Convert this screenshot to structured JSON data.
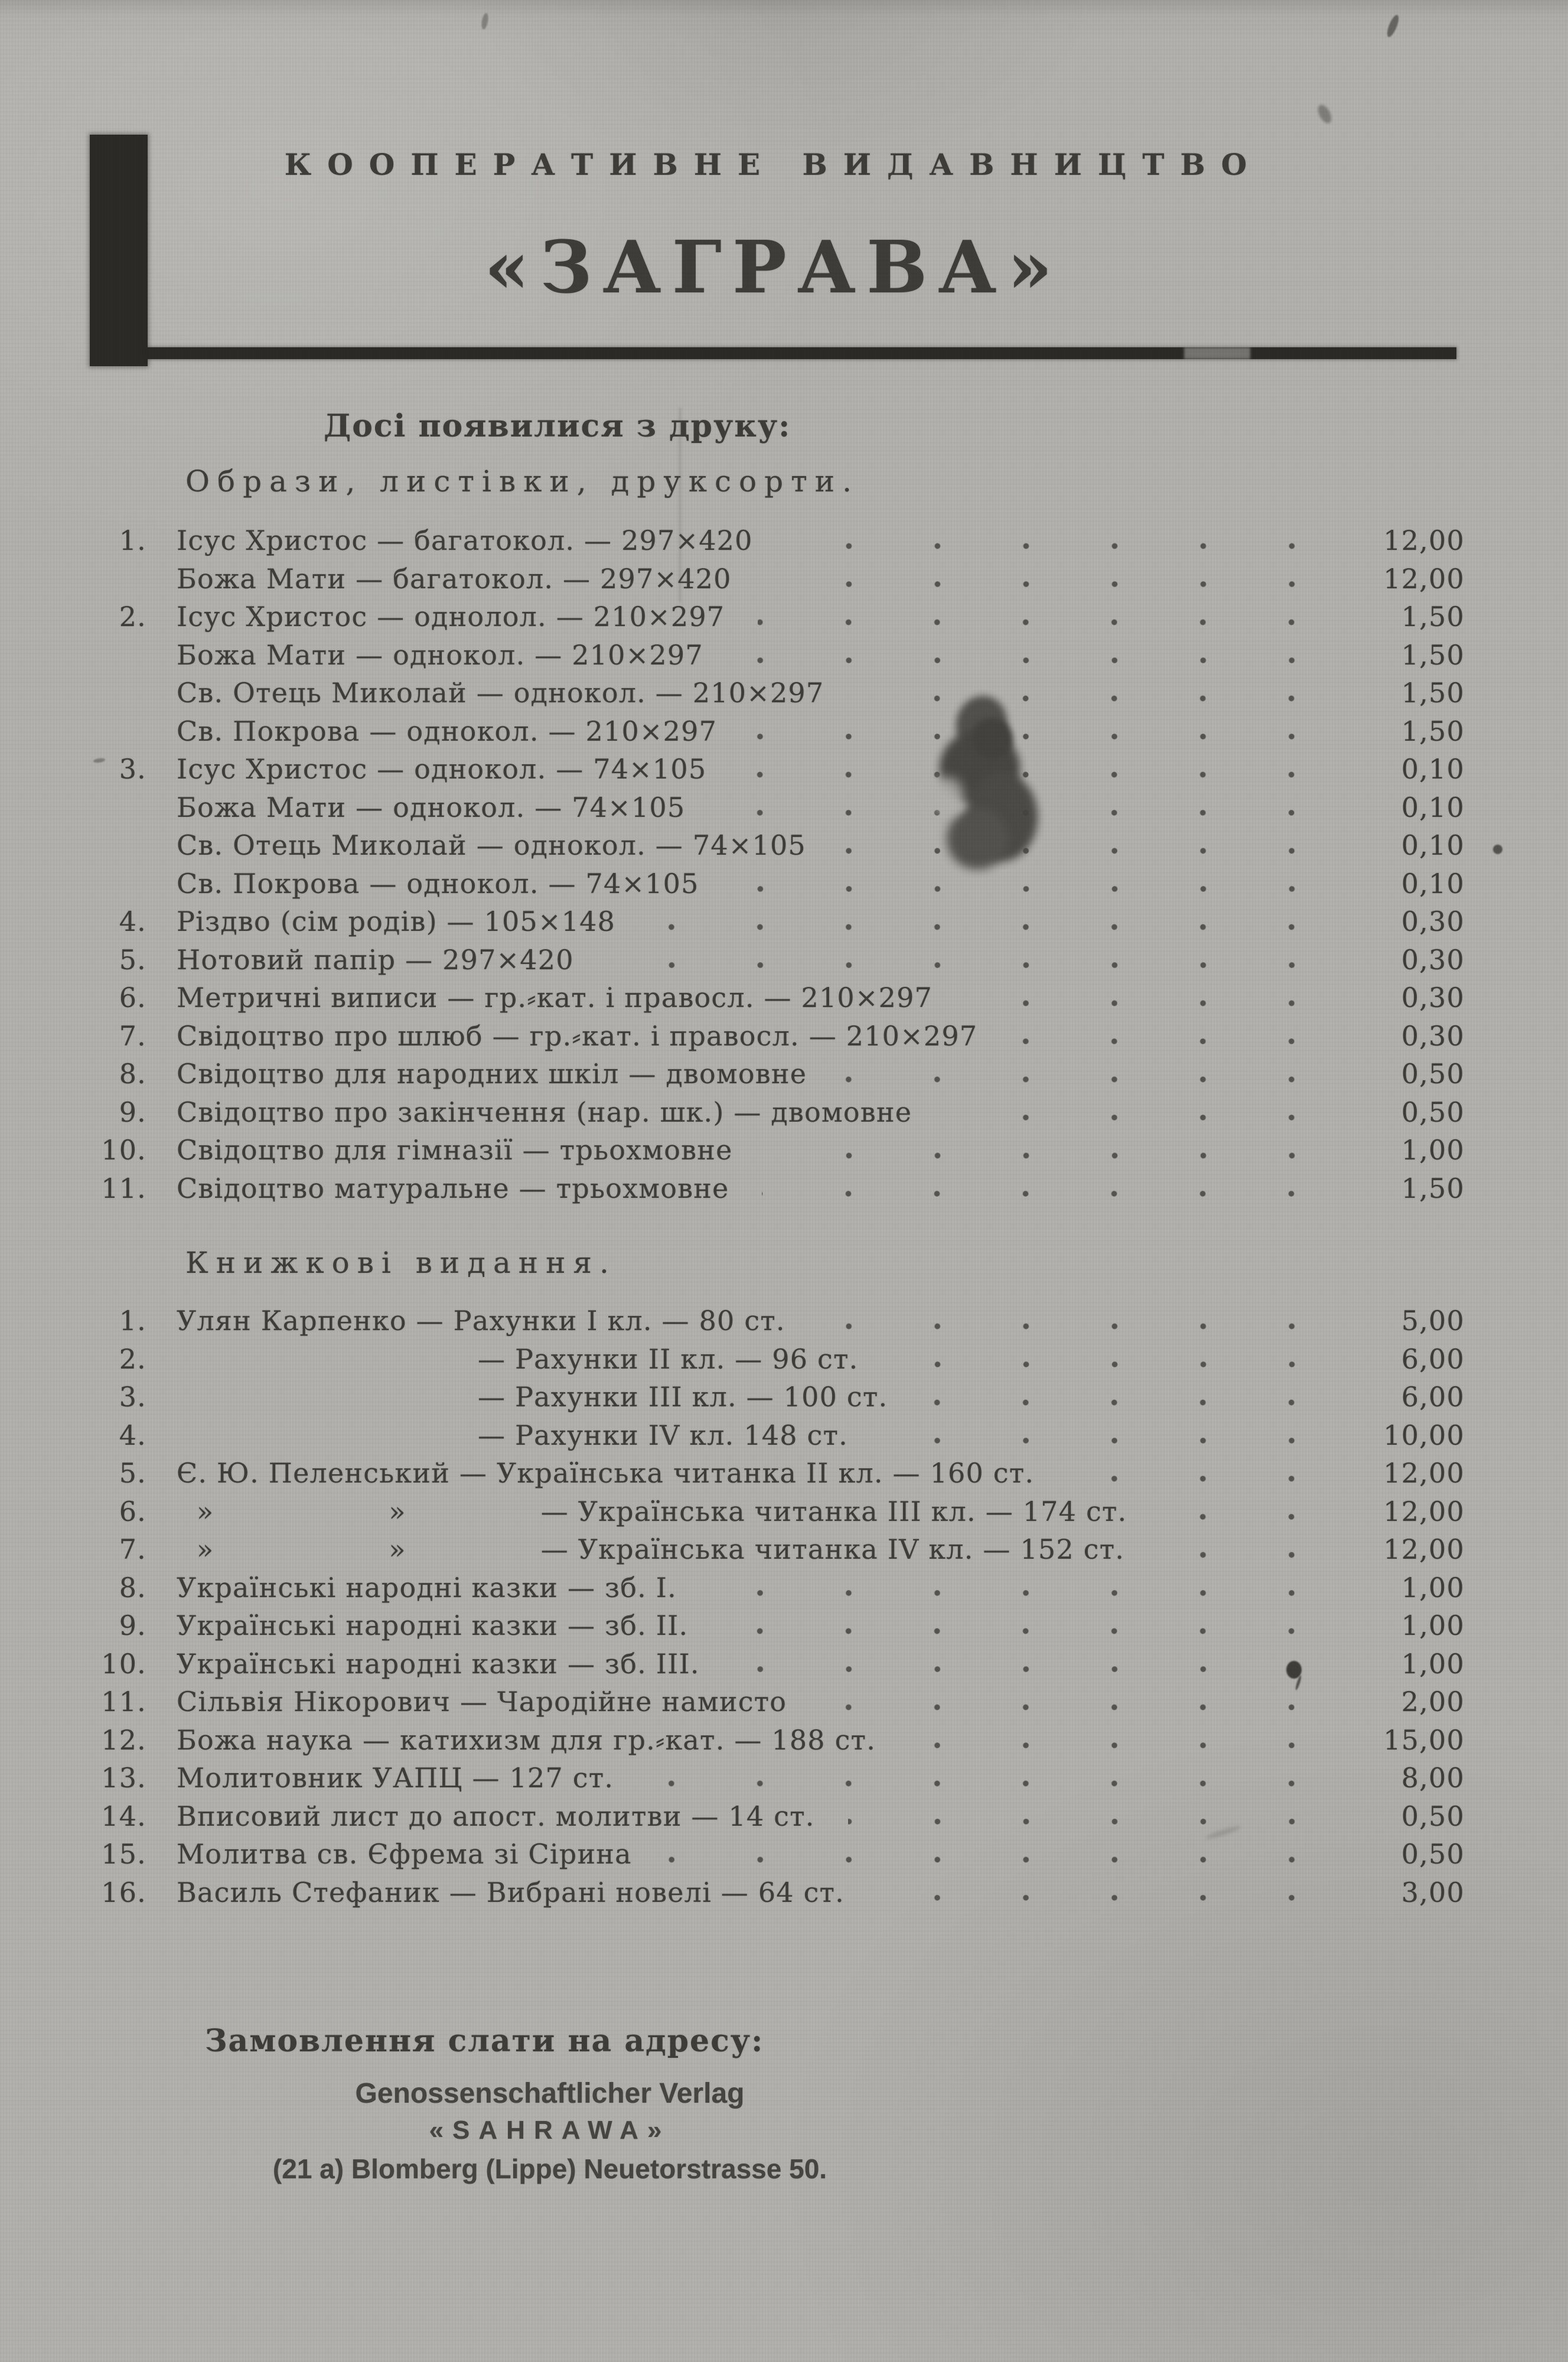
{
  "publisher": {
    "line1": "КООПЕРАТИВНЕ ВИДАВНИЦТВО",
    "name": "«ЗАГРАВА»"
  },
  "intro": "Досі появилися з друку:",
  "sections": [
    {
      "title": "Образи, листівки, друксорти.",
      "rows": [
        {
          "num": "1.",
          "text": "Ісус Христос — багатокол. — 297×420",
          "price": "12,00"
        },
        {
          "num": "",
          "text": "Божа Мати — багатокол. — 297×420",
          "price": "12,00"
        },
        {
          "num": "2.",
          "text": "Ісус Христос — однолол. — 210×297",
          "price": "1,50"
        },
        {
          "num": "",
          "text": "Божа Мати — однокол. — 210×297",
          "price": "1,50"
        },
        {
          "num": "",
          "text": "Св. Отець Миколай — однокол. — 210×297",
          "price": "1,50"
        },
        {
          "num": "",
          "text": "Св. Покрова — однокол. — 210×297",
          "price": "1,50"
        },
        {
          "num": "3.",
          "text": "Ісус Христос — однокол. — 74×105",
          "price": "0,10"
        },
        {
          "num": "",
          "text": "Божа Мати — однокол. — 74×105",
          "price": "0,10"
        },
        {
          "num": "",
          "text": "Св. Отець Миколай — однокол. — 74×105",
          "price": "0,10"
        },
        {
          "num": "",
          "text": "Св. Покрова — однокол. — 74×105",
          "price": "0,10"
        },
        {
          "num": "4.",
          "text": "Різдво (сім родів) — 105×148",
          "price": "0,30"
        },
        {
          "num": "5.",
          "text": "Нотовий папір — 297×420",
          "price": "0,30"
        },
        {
          "num": "6.",
          "text": "Метричні виписи — гр.⸗кат. і правосл. — 210×297",
          "price": "0,30"
        },
        {
          "num": "7.",
          "text": "Свідоцтво про шлюб — гр.⸗кат. і правосл. — 210×297",
          "price": "0,30"
        },
        {
          "num": "8.",
          "text": "Свідоцтво для народних шкіл — двомовне",
          "price": "0,50"
        },
        {
          "num": "9.",
          "text": "Свідоцтво про закінчення (нар. шк.) — двомовне",
          "price": "0,50"
        },
        {
          "num": "10.",
          "text": "Свідоцтво для гімназії — трьохмовне",
          "price": "1,00"
        },
        {
          "num": "11.",
          "text": "Свідоцтво матуральне — трьохмовне",
          "price": "1,50"
        }
      ]
    },
    {
      "title": "Книжкові видання.",
      "rows": [
        {
          "num": "1.",
          "text": "Улян Карпенко — Рахунки I кл. — 80 ст.",
          "price": "5,00"
        },
        {
          "num": "2.",
          "indent": true,
          "text": "— Рахунки II кл. — 96 ст.",
          "price": "6,00"
        },
        {
          "num": "3.",
          "indent": true,
          "text": "— Рахунки III кл. — 100 ст.",
          "price": "6,00"
        },
        {
          "num": "4.",
          "indent": true,
          "text": "— Рахунки IV кл. 148 ст.",
          "price": "10,00"
        },
        {
          "num": "5.",
          "text": "Є. Ю. Пеленський — Українська читанка II кл. — 160 ст.",
          "price": "12,00"
        },
        {
          "num": "6.",
          "d1": "»",
          "d2": "»",
          "text": "— Українська читанка III кл. — 174 ст.",
          "price": "12,00"
        },
        {
          "num": "7.",
          "d1": "»",
          "d2": "»",
          "text": "— Українська читанка IV кл. — 152 ст.",
          "price": "12,00"
        },
        {
          "num": "8.",
          "text": "Українські народні казки — зб. I.",
          "price": "1,00"
        },
        {
          "num": "9.",
          "text": "Українські народні казки — зб. II.",
          "price": "1,00"
        },
        {
          "num": "10.",
          "text": "Українські народні казки — зб. III.",
          "price": "1,00"
        },
        {
          "num": "11.",
          "text": "Сільвія Нікорович — Чародійне намисто",
          "price": "2,00"
        },
        {
          "num": "12.",
          "text": "Божа наука — катихизм для гр.⸗кат. — 188 ст.",
          "price": "15,00"
        },
        {
          "num": "13.",
          "text": "Молитовник УАПЦ — 127 ст.",
          "price": "8,00"
        },
        {
          "num": "14.",
          "text": "Вписовий лист до апост. молитви — 14 ст.",
          "price": "0,50"
        },
        {
          "num": "15.",
          "text": "Молитва св. Єфрема зі Сірина",
          "price": "0,50"
        },
        {
          "num": "16.",
          "text": "Василь Стефаник — Вибрані новелі — 64 ст.",
          "price": "3,00"
        }
      ]
    }
  ],
  "footer": {
    "order_note": "Замовлення слати на адресу:",
    "verlag": "Genossenschaftlicher Verlag",
    "brand": "«SAHRAWA»",
    "address": "(21 a) Blomberg (Lippe) Neuetorstrasse 50."
  }
}
